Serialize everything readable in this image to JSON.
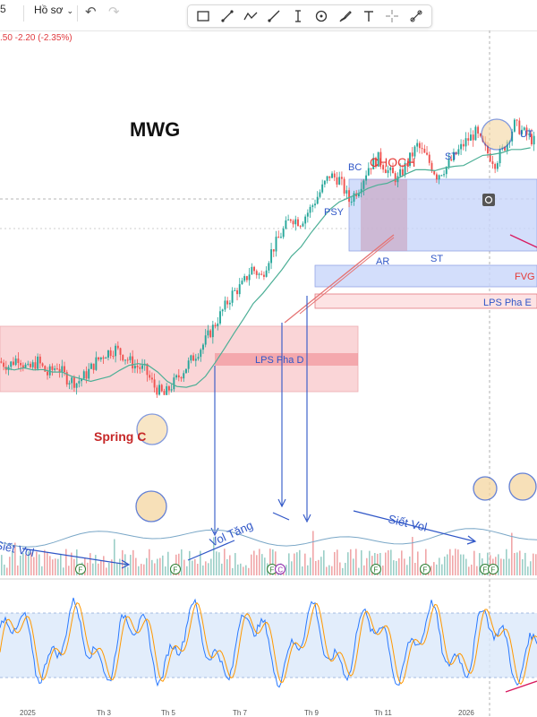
{
  "toolbar": {
    "interval_label": "5",
    "layout_label": "Hồ sơ",
    "tools": [
      "rectangle-tool-icon",
      "trend-line-tool-icon",
      "path-tool-icon",
      "ray-tool-icon",
      "text-cursor-tool-icon",
      "circle-tool-icon",
      "brush-tool-icon",
      "text-tool-icon",
      "crosshair-tool-icon",
      "more-tools-icon"
    ]
  },
  "legend": {
    "price_change": ".50  -2.20 (-2.35%)"
  },
  "colors": {
    "candle_up": "#26a69a",
    "candle_down": "#ef5350",
    "zone_red": "#f7b4b8",
    "zone_blue": "#c9d6fb",
    "annotation_red": "#e53935",
    "annotation_blue": "#2f56c7",
    "oscillator_band": "#dbe9fa",
    "ma_line": "#4caf96",
    "highlight_circle": "#f5d6a1"
  },
  "chart_data": {
    "type": "line",
    "title": "MWG",
    "series": [
      {
        "name": "",
        "values": [
          52,
          51,
          53,
          50,
          52,
          49,
          51,
          48,
          47,
          49,
          52,
          54,
          55,
          53,
          51,
          50,
          46,
          44,
          47,
          50,
          53,
          56,
          60,
          64,
          68,
          70,
          74,
          72,
          78,
          82,
          86,
          85,
          88,
          92,
          96,
          95,
          90,
          93,
          98,
          100,
          97,
          95,
          99,
          103,
          100,
          96,
          98,
          101,
          104,
          106,
          102,
          99,
          103,
          108,
          106,
          104
        ]
      }
    ],
    "annotations": {
      "wyckoff_labels": [
        "PSY",
        "BC",
        "CHOCH",
        "AR",
        "ST",
        "ST",
        "UT",
        "Spring C"
      ],
      "zones": [
        "LPS Pha D",
        "FVG",
        "LPS Pha E"
      ],
      "volume_notes": [
        "Siết Vol",
        "Vol Tăng",
        "Siết Vol"
      ],
      "volume_markers": [
        "F",
        "F",
        "F",
        "C",
        "F",
        "F",
        "F",
        "F"
      ],
      "time_axis": [
        "2025",
        "Th 3",
        "Th 5",
        "Th 7",
        "Th 9",
        "Th 11",
        "2026"
      ]
    }
  }
}
